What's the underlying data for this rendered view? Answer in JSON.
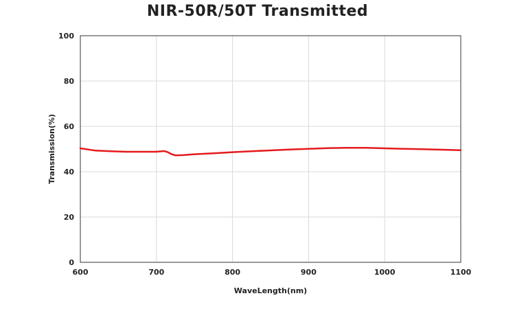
{
  "chart_data": {
    "type": "line",
    "title": "NIR-50R/50T Transmitted",
    "xlabel": "WaveLength(nm)",
    "ylabel": "Transmission(%)",
    "xlim": [
      600,
      1100
    ],
    "ylim": [
      0,
      100
    ],
    "xticks": [
      600,
      700,
      800,
      900,
      1000,
      1100
    ],
    "yticks": [
      0,
      20,
      40,
      60,
      80,
      100
    ],
    "grid": true,
    "series": [
      {
        "color": "#e41a1c",
        "points": [
          [
            600,
            50.3
          ],
          [
            610,
            49.8
          ],
          [
            620,
            49.3
          ],
          [
            640,
            49.0
          ],
          [
            660,
            48.8
          ],
          [
            680,
            48.8
          ],
          [
            700,
            48.8
          ],
          [
            710,
            49.1
          ],
          [
            715,
            48.6
          ],
          [
            720,
            47.7
          ],
          [
            725,
            47.2
          ],
          [
            735,
            47.3
          ],
          [
            750,
            47.7
          ],
          [
            775,
            48.1
          ],
          [
            800,
            48.6
          ],
          [
            825,
            49.0
          ],
          [
            850,
            49.4
          ],
          [
            875,
            49.8
          ],
          [
            900,
            50.1
          ],
          [
            925,
            50.4
          ],
          [
            950,
            50.5
          ],
          [
            975,
            50.5
          ],
          [
            1000,
            50.3
          ],
          [
            1025,
            50.1
          ],
          [
            1050,
            49.9
          ],
          [
            1075,
            49.7
          ],
          [
            1100,
            49.5
          ]
        ]
      }
    ]
  }
}
